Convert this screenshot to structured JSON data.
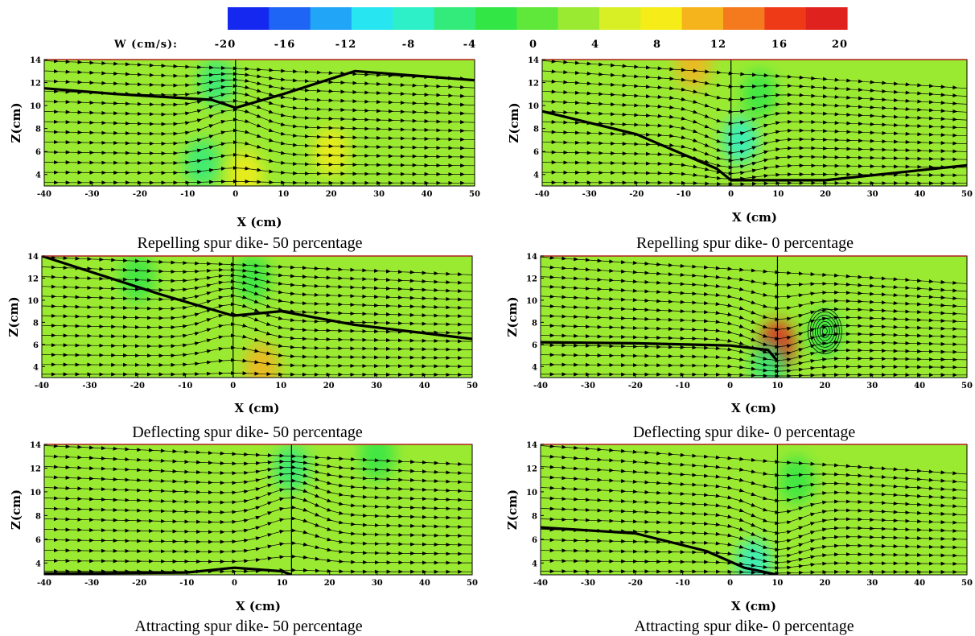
{
  "colorbar": {
    "label": "W (cm/s):",
    "ticks": [
      -20,
      -16,
      -12,
      -8,
      -4,
      0,
      4,
      8,
      12,
      16,
      20
    ],
    "colors": [
      "#1428f0",
      "#1e64f5",
      "#21a5f7",
      "#27e6f2",
      "#2df0c8",
      "#33eb7a",
      "#32e646",
      "#5fe83a",
      "#9bea32",
      "#d8ef26",
      "#f5ec18",
      "#f5b41c",
      "#f57a1e",
      "#ef3a18",
      "#e0221e"
    ]
  },
  "chart_data": [
    {
      "type": "heatmap",
      "panel": "Repelling spur dike- 50 percentage",
      "caption": "Repelling spur dike- 50 percentage",
      "xlabel": "X (cm)",
      "ylabel": "Z(cm)",
      "xlim": [
        -40,
        50
      ],
      "ylim": [
        3,
        14
      ],
      "xticks": [
        -40,
        -30,
        -20,
        -10,
        0,
        10,
        20,
        30,
        40,
        50
      ],
      "yticks": [
        4,
        6,
        8,
        10,
        12,
        14
      ],
      "dike_x": 0,
      "dike_top_z": 14,
      "background_w": 2,
      "w_extremes": [
        {
          "x": -7,
          "z": 5,
          "w": -6
        },
        {
          "x": -4,
          "z": 12,
          "w": -5
        },
        {
          "x": 2,
          "z": 4,
          "w": 8
        },
        {
          "x": 20,
          "z": 6,
          "w": 7
        }
      ],
      "streamlines": 13,
      "dense_z": [
        [
          -40,
          11.5
        ],
        [
          -25,
          11
        ],
        [
          -5,
          10.5
        ],
        [
          0,
          9.8
        ],
        [
          10,
          11
        ],
        [
          25,
          13
        ],
        [
          50,
          12.2
        ]
      ]
    },
    {
      "type": "heatmap",
      "panel": "Repelling spur dike- 0 percentage",
      "caption": "Repelling spur dike- 0 percentage",
      "xlabel": "X (cm)",
      "ylabel": "Z(cm)",
      "xlim": [
        -40,
        50
      ],
      "ylim": [
        3,
        14
      ],
      "xticks": [
        -40,
        -30,
        -20,
        -10,
        0,
        10,
        20,
        30,
        40,
        50
      ],
      "yticks": [
        4,
        6,
        8,
        10,
        12,
        14
      ],
      "dike_x": 0,
      "dike_top_z": 14,
      "background_w": 2,
      "w_extremes": [
        {
          "x": 2,
          "z": 7,
          "w": -7
        },
        {
          "x": 6,
          "z": 11,
          "w": -4
        },
        {
          "x": -8,
          "z": 13.5,
          "w": 10
        }
      ],
      "streamlines": 13,
      "dense_z": [
        [
          -40,
          9.5
        ],
        [
          -20,
          7.5
        ],
        [
          -3,
          4.5
        ],
        [
          0,
          3.5
        ],
        [
          20,
          3.5
        ],
        [
          50,
          4.8
        ]
      ]
    },
    {
      "type": "heatmap",
      "panel": "Deflecting spur dike- 50 percentage",
      "caption": "Deflecting spur dike- 50 percentage",
      "xlabel": "X (cm)",
      "ylabel": "Z(cm)",
      "xlim": [
        -40,
        50
      ],
      "ylim": [
        3,
        14
      ],
      "xticks": [
        -40,
        -30,
        -20,
        -10,
        0,
        10,
        20,
        30,
        40,
        50
      ],
      "yticks": [
        4,
        6,
        8,
        10,
        12,
        14
      ],
      "dike_x": 0,
      "dike_top_z": 14,
      "background_w": 2,
      "w_extremes": [
        {
          "x": 6,
          "z": 4,
          "w": 10
        },
        {
          "x": 4,
          "z": 12,
          "w": -4
        },
        {
          "x": -20,
          "z": 12,
          "w": -3
        }
      ],
      "streamlines": 13,
      "dense_z": [
        [
          -40,
          14
        ],
        [
          -15,
          10.5
        ],
        [
          0,
          8.6
        ],
        [
          10,
          9
        ],
        [
          25,
          7.8
        ],
        [
          50,
          6.5
        ]
      ]
    },
    {
      "type": "heatmap",
      "panel": "Deflecting spur dike- 0 percentage",
      "caption": "Deflecting spur dike- 0 percentage",
      "xlabel": "X (cm)",
      "ylabel": "Z(cm)",
      "xlim": [
        -40,
        50
      ],
      "ylim": [
        3,
        14
      ],
      "xticks": [
        -40,
        -30,
        -20,
        -10,
        0,
        10,
        20,
        30,
        40,
        50
      ],
      "yticks": [
        4,
        6,
        8,
        10,
        12,
        14
      ],
      "dike_x": 10,
      "dike_top_z": 14,
      "background_w": 2,
      "w_extremes": [
        {
          "x": 10,
          "z": 6,
          "w": 18
        },
        {
          "x": 8,
          "z": 4,
          "w": -6
        },
        {
          "x": 20,
          "z": 7,
          "w": -2
        }
      ],
      "streamlines": 13,
      "dense_z": [
        [
          -40,
          6.2
        ],
        [
          -20,
          6.1
        ],
        [
          0,
          5.9
        ],
        [
          8,
          5.5
        ],
        [
          10,
          4.5
        ]
      ],
      "vortex": {
        "x": 20,
        "z": 7.2
      }
    },
    {
      "type": "heatmap",
      "panel": "Attracting spur dike- 50 percentage",
      "caption": "Attracting spur dike- 50 percentage",
      "xlabel": "X (cm)",
      "ylabel": "Z(cm)",
      "xlim": [
        -40,
        50
      ],
      "ylim": [
        3,
        14
      ],
      "xticks": [
        -40,
        -30,
        -20,
        -10,
        0,
        10,
        20,
        30,
        40,
        50
      ],
      "yticks": [
        4,
        6,
        8,
        10,
        12,
        14
      ],
      "dike_x": 12,
      "dike_top_z": 14,
      "background_w": 2,
      "w_extremes": [
        {
          "x": 12,
          "z": 12,
          "w": -5
        },
        {
          "x": 30,
          "z": 13,
          "w": -3
        }
      ],
      "streamlines": 13,
      "dense_z": [
        [
          -40,
          3.1
        ],
        [
          -10,
          3.2
        ],
        [
          0,
          3.6
        ],
        [
          10,
          3.3
        ],
        [
          12,
          3
        ]
      ]
    },
    {
      "type": "heatmap",
      "panel": "Attracting spur dike- 0 percentage",
      "caption": "Attracting spur dike- 0 percentage",
      "xlabel": "X (cm)",
      "ylabel": "Z(cm)",
      "xlim": [
        -40,
        50
      ],
      "ylim": [
        3,
        14
      ],
      "xticks": [
        -40,
        -30,
        -20,
        -10,
        0,
        10,
        20,
        30,
        40,
        50
      ],
      "yticks": [
        4,
        6,
        8,
        10,
        12,
        14
      ],
      "dike_x": 10,
      "dike_top_z": 14,
      "background_w": 2,
      "w_extremes": [
        {
          "x": 5,
          "z": 4,
          "w": -7
        },
        {
          "x": 14,
          "z": 11,
          "w": -3
        }
      ],
      "streamlines": 13,
      "dense_z": [
        [
          -40,
          7
        ],
        [
          -20,
          6.5
        ],
        [
          -5,
          5
        ],
        [
          3,
          3.6
        ],
        [
          10,
          3
        ]
      ]
    }
  ]
}
